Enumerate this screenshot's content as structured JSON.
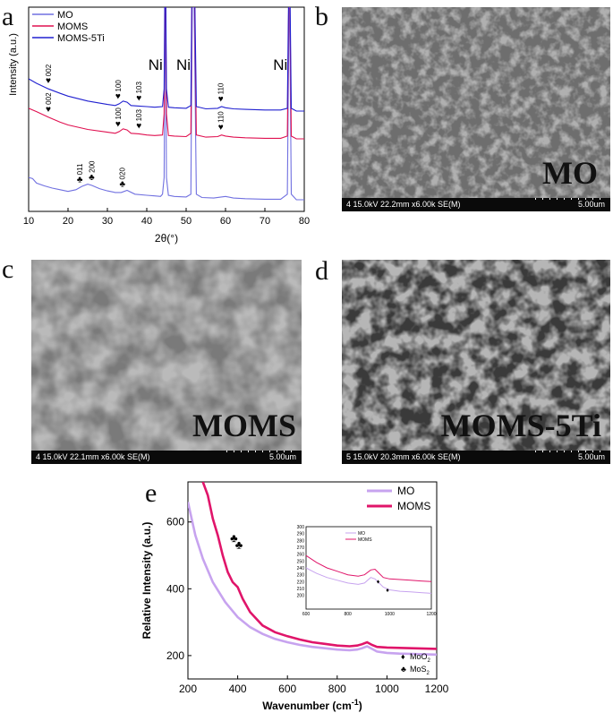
{
  "panels": {
    "a": "a",
    "b": "b",
    "c": "c",
    "d": "d",
    "e": "e"
  },
  "sem": [
    {
      "id": "b",
      "info": "4 15.0kV 22.2mm x6.00k SE(M)",
      "scale": "5.00um",
      "label": "MO"
    },
    {
      "id": "c",
      "info": "4 15.0kV 22.1mm x6.00k SE(M)",
      "scale": "5.00um",
      "label": "MOMS"
    },
    {
      "id": "d",
      "info": "5 15.0kV 20.3mm x6.00k SE(M)",
      "scale": "5.00um",
      "label": "MOMS-5Ti"
    }
  ],
  "colors": {
    "mo_xrd": "#7070e0",
    "moms_xrd": "#e01050",
    "moms5ti_xrd": "#2020d0",
    "mo_raman": "#c7a3ef",
    "moms_raman": "#e0156a"
  },
  "chart_data": [
    {
      "type": "line",
      "panel": "a",
      "xlabel": "2θ(°)",
      "ylabel": "Intensity (a.u.)",
      "xlim": [
        10,
        80
      ],
      "xticks": [
        10,
        20,
        30,
        40,
        50,
        60,
        70,
        80
      ],
      "legend": "top-left",
      "series": [
        {
          "name": "MO",
          "color": "#7070e0",
          "offset": 0,
          "x": [
            10,
            11,
            12,
            14,
            16,
            18,
            20,
            22,
            23.5,
            25,
            26,
            27,
            28,
            30,
            32,
            33.5,
            35,
            37,
            40,
            42,
            43.5,
            44,
            44.4,
            44.7,
            45,
            45.5,
            47,
            50,
            51.2,
            51.6,
            52,
            52.6,
            54,
            57,
            60,
            62,
            65,
            70,
            74,
            75.7,
            76.2,
            76.7,
            78,
            80
          ],
          "y": [
            60,
            58,
            50,
            45,
            41,
            38,
            35,
            38,
            44,
            48,
            46,
            43,
            40,
            36,
            33,
            33,
            37,
            30,
            28,
            27,
            26,
            30,
            60,
            420,
            60,
            28,
            26,
            25,
            30,
            420,
            380,
            30,
            24,
            23,
            26,
            23,
            22,
            21,
            21,
            30,
            420,
            30,
            20,
            20
          ]
        },
        {
          "name": "MOMS",
          "color": "#e01050",
          "offset": 0,
          "x": [
            10,
            12,
            15,
            18,
            20,
            25,
            30,
            32,
            33,
            34,
            35,
            36,
            38,
            40,
            42,
            44,
            44.4,
            44.7,
            45,
            45.5,
            47,
            50,
            51.2,
            51.6,
            52,
            52.6,
            55,
            58,
            59,
            60,
            62,
            65,
            70,
            74,
            75.7,
            76.2,
            76.7,
            78,
            80
          ],
          "y": [
            130,
            124,
            114,
            105,
            100,
            92,
            87,
            85,
            88,
            93,
            91,
            85,
            84,
            82,
            81,
            82,
            120,
            420,
            120,
            81,
            80,
            79,
            85,
            420,
            400,
            82,
            78,
            79,
            82,
            80,
            78,
            77,
            76,
            76,
            80,
            420,
            80,
            75,
            75
          ]
        },
        {
          "name": "MOMS-5Ti",
          "color": "#2020d0",
          "offset": 0,
          "x": [
            10,
            12,
            15,
            18,
            20,
            25,
            30,
            32,
            33,
            34,
            35,
            36,
            38,
            40,
            42,
            44,
            44.4,
            44.7,
            45,
            45.5,
            47,
            50,
            51.2,
            51.6,
            52,
            52.6,
            55,
            58,
            59,
            60,
            62,
            65,
            70,
            74,
            75.7,
            76.2,
            76.7,
            78,
            80
          ],
          "y": [
            158,
            150,
            140,
            132,
            127,
            118,
            112,
            110,
            113,
            118,
            116,
            110,
            109,
            108,
            107,
            108,
            140,
            420,
            140,
            107,
            106,
            105,
            110,
            420,
            400,
            108,
            104,
            105,
            108,
            106,
            104,
            103,
            102,
            102,
            105,
            420,
            105,
            100,
            100
          ]
        }
      ],
      "annotations": [
        {
          "text": "Ni",
          "x": 44.5
        },
        {
          "text": "Ni",
          "x": 51.6
        },
        {
          "text": "Ni",
          "x": 76.2
        }
      ],
      "peak_labels": [
        {
          "text": "002",
          "x": 15,
          "series": "MOMS-5Ti",
          "marker": "♥"
        },
        {
          "text": "100",
          "x": 32.7,
          "series": "MOMS-5Ti",
          "marker": "♥"
        },
        {
          "text": "103",
          "x": 38,
          "series": "MOMS-5Ti",
          "marker": "♥"
        },
        {
          "text": "110",
          "x": 58.8,
          "series": "MOMS-5Ti",
          "marker": "♥"
        },
        {
          "text": "002",
          "x": 15,
          "series": "MOMS",
          "marker": "♥"
        },
        {
          "text": "100",
          "x": 32.7,
          "series": "MOMS",
          "marker": "♥"
        },
        {
          "text": "103",
          "x": 38,
          "series": "MOMS",
          "marker": "♥"
        },
        {
          "text": "110",
          "x": 58.8,
          "series": "MOMS",
          "marker": "♥"
        },
        {
          "text": "011",
          "x": 23,
          "series": "MO",
          "marker": "♣"
        },
        {
          "text": "200",
          "x": 26,
          "series": "MO",
          "marker": "♣"
        },
        {
          "text": "020",
          "x": 33.8,
          "series": "MO",
          "marker": "♣"
        }
      ]
    },
    {
      "type": "line",
      "panel": "e",
      "xlabel": "Wavenumber (cm",
      "xlabel_sup": "-1",
      "xlabel_end": ")",
      "ylabel": "Relative Intensity (a.u.)",
      "xlim": [
        200,
        1200
      ],
      "ylim": [
        130,
        720
      ],
      "xticks": [
        200,
        400,
        600,
        800,
        1000,
        1200
      ],
      "yticks": [
        200,
        400,
        600
      ],
      "legend": "top-right",
      "series": [
        {
          "name": "MO",
          "color": "#c7a3ef",
          "x": [
            200,
            230,
            260,
            300,
            350,
            400,
            450,
            500,
            550,
            600,
            650,
            700,
            750,
            800,
            850,
            880,
            900,
            920,
            940,
            960,
            1000,
            1050,
            1100,
            1150,
            1200
          ],
          "y": [
            660,
            560,
            490,
            420,
            360,
            315,
            285,
            265,
            250,
            240,
            232,
            226,
            222,
            218,
            216,
            218,
            222,
            228,
            220,
            212,
            208,
            206,
            205,
            204,
            203
          ]
        },
        {
          "name": "MOMS",
          "color": "#e0156a",
          "x": [
            260,
            280,
            300,
            320,
            340,
            360,
            380,
            400,
            420,
            450,
            500,
            550,
            600,
            650,
            700,
            750,
            800,
            850,
            880,
            900,
            920,
            940,
            960,
            1000,
            1050,
            1100,
            1150,
            1200
          ],
          "y": [
            720,
            680,
            610,
            560,
            500,
            450,
            420,
            405,
            370,
            330,
            290,
            270,
            258,
            248,
            240,
            235,
            230,
            228,
            230,
            234,
            240,
            232,
            226,
            224,
            223,
            222,
            221,
            220
          ]
        }
      ],
      "inset": {
        "xlim": [
          600,
          1200
        ],
        "ylim": [
          180,
          300
        ],
        "xticks": [
          600,
          800,
          1000,
          1200
        ],
        "yticks": [
          200,
          210,
          220,
          230,
          240,
          250,
          260,
          270,
          280,
          290,
          300
        ],
        "legend": [
          "MO",
          "MOMS"
        ],
        "series": [
          {
            "name": "MO",
            "color": "#c7a3ef",
            "x": [
              600,
              650,
              700,
              750,
              800,
              850,
              880,
              910,
              930,
              950,
              970,
              1000,
              1050,
              1100,
              1150,
              1200
            ],
            "y": [
              240,
              232,
              226,
              222,
              218,
              216,
              218,
              226,
              224,
              218,
              212,
              208,
              206,
              205,
              204,
              203
            ]
          },
          {
            "name": "MOMS",
            "color": "#e0156a",
            "x": [
              600,
              650,
              700,
              750,
              800,
              850,
              880,
              910,
              930,
              950,
              970,
              1000,
              1050,
              1100,
              1150,
              1200
            ],
            "y": [
              258,
              248,
              240,
              235,
              230,
              228,
              230,
              237,
              238,
              232,
              226,
              224,
              223,
              222,
              221,
              220
            ]
          }
        ],
        "markers": [
          {
            "x": 945,
            "y": 217,
            "symbol": "♦"
          },
          {
            "x": 990,
            "y": 205,
            "symbol": "♦"
          }
        ]
      },
      "markers": [
        {
          "x": 385,
          "y": 540,
          "symbol": "♣"
        },
        {
          "x": 405,
          "y": 520,
          "symbol": "♣"
        }
      ],
      "symbol_legend": [
        {
          "symbol": "♦",
          "label": "MoO",
          "sub": "2"
        },
        {
          "symbol": "♣",
          "label": "MoS",
          "sub": "2"
        }
      ]
    }
  ]
}
